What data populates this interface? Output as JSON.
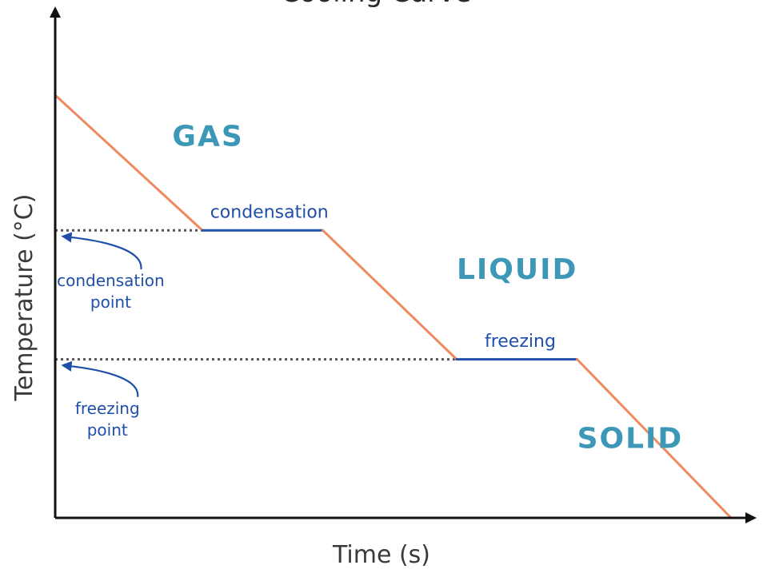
{
  "chart_data": {
    "type": "line",
    "title": "Cooling Curve",
    "xlabel": "Time (s)",
    "ylabel": "Temperature (°C)",
    "grid": false,
    "segments": [
      {
        "kind": "cooling",
        "x": [
          0,
          2.2
        ],
        "y": [
          100,
          68
        ]
      },
      {
        "kind": "plateau",
        "x": [
          2.2,
          4.0
        ],
        "y": [
          68,
          68
        ]
      },
      {
        "kind": "cooling",
        "x": [
          4.0,
          6.0
        ],
        "y": [
          68,
          37.5
        ]
      },
      {
        "kind": "plateau",
        "x": [
          6.0,
          7.8
        ],
        "y": [
          37.5,
          37.5
        ]
      },
      {
        "kind": "cooling",
        "x": [
          7.8,
          10.1
        ],
        "y": [
          37.5,
          0
        ]
      }
    ],
    "reference_lines": [
      {
        "y": 68,
        "x": [
          0,
          2.2
        ]
      },
      {
        "y": 37.5,
        "x": [
          0,
          6.0
        ]
      }
    ],
    "xlim": [
      0,
      10.1
    ],
    "ylim": [
      0,
      100
    ],
    "region_labels": [
      {
        "text": "GAS",
        "x": 1.75,
        "y": 88
      },
      {
        "text": "LIQUID",
        "x": 6.0,
        "y": 56.5
      },
      {
        "text": "SOLID",
        "x": 7.8,
        "y": 16.5
      }
    ],
    "transition_labels": [
      {
        "text": "condensation",
        "x": 3.2,
        "y": 71
      },
      {
        "text": "freezing",
        "x": 6.95,
        "y": 40.5
      }
    ],
    "point_labels": [
      {
        "lines": [
          "condensation",
          "point"
        ],
        "x": 0.83,
        "y_text": [
          54.8,
          49.7
        ],
        "y_arrow_head": 66.5
      },
      {
        "lines": [
          "freezing",
          "point"
        ],
        "x": 0.78,
        "y_text": [
          24.6,
          19.5
        ],
        "y_arrow_head": 36.0
      }
    ],
    "colors": {
      "cooling": "#ef8a5f",
      "plateau": "#2350a8",
      "reference": "#555555",
      "phase_text": "#3d98b8",
      "annotation_text": "#1f4fa8",
      "axis": "#111111"
    }
  }
}
